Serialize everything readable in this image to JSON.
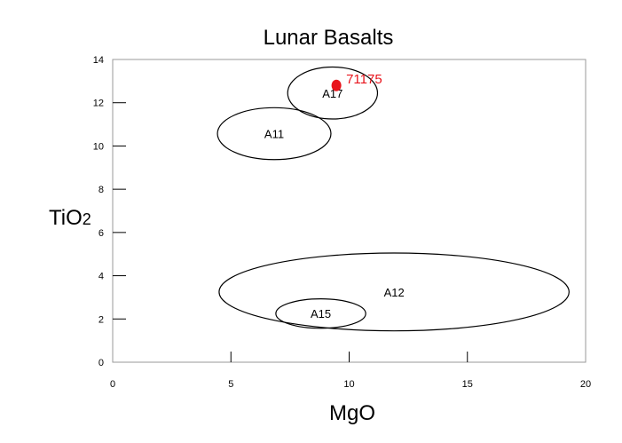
{
  "chart_data": {
    "type": "scatter",
    "title": "Lunar Basalts",
    "xlabel": "MgO",
    "ylabel_main": "TiO",
    "ylabel_sub": "2",
    "xlim": [
      0,
      20
    ],
    "ylim": [
      0,
      14
    ],
    "xticks": [
      0,
      5,
      10,
      15,
      20
    ],
    "yticks": [
      0,
      2,
      4,
      6,
      8,
      10,
      12,
      14
    ],
    "grid": false,
    "fields": [
      {
        "name": "A17",
        "cx": 9.3,
        "cy": 12.45,
        "rx": 1.9,
        "ry": 1.2
      },
      {
        "name": "A11",
        "cx": 6.83,
        "cy": 10.57,
        "rx": 2.4,
        "ry": 1.2
      },
      {
        "name": "A12",
        "cx": 11.9,
        "cy": 3.25,
        "rx": 7.4,
        "ry": 1.8
      },
      {
        "name": "A15",
        "cx": 8.8,
        "cy": 2.25,
        "rx": 1.9,
        "ry": 0.68
      }
    ],
    "points": [
      {
        "name": "71175",
        "x": 9.46,
        "y": 12.8,
        "color": "#e8141c"
      }
    ]
  }
}
